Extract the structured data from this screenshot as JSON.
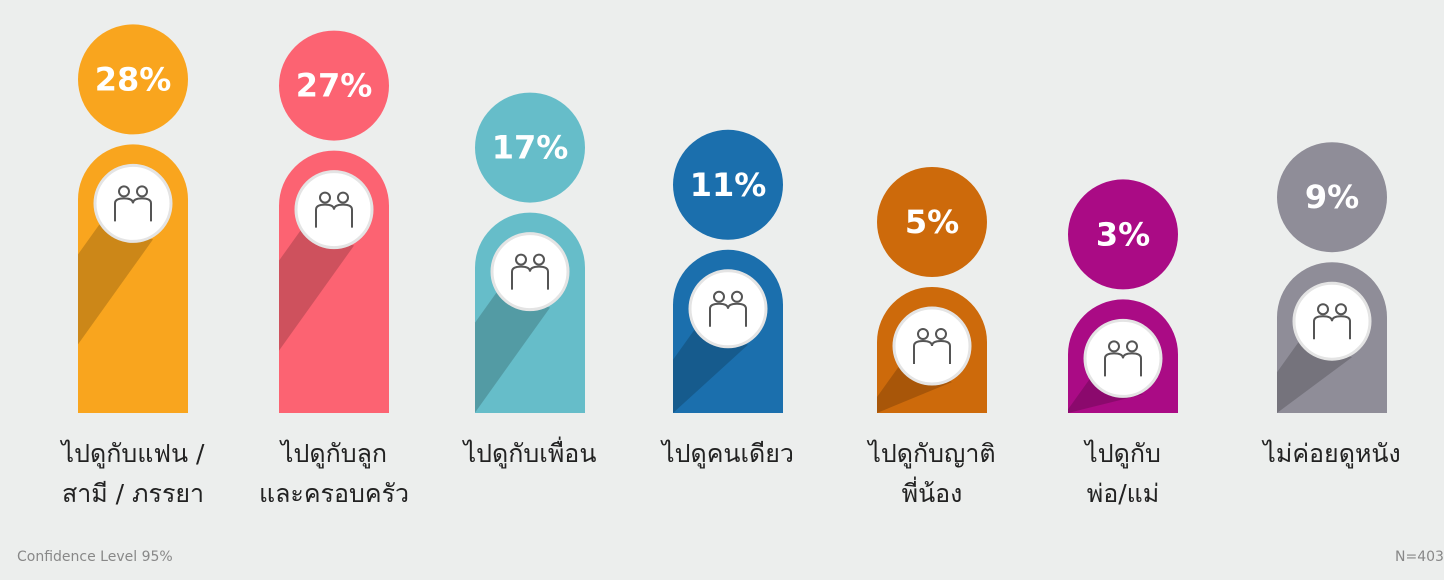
{
  "chart_data": {
    "type": "bar",
    "categories": [
      [
        "ไปดูกับแฟน /",
        "สามี / ภรรยา"
      ],
      [
        "ไปดูกับลูก",
        "และครอบครัว"
      ],
      [
        "ไปดูกับเพื่อน"
      ],
      [
        "ไปดูคนเดียว"
      ],
      [
        "ไปดูกับญาติ",
        "พี่น้อง"
      ],
      [
        "ไปดูกับ",
        "พ่อ/แม่"
      ],
      [
        "ไม่ค่อยดูหนัง"
      ]
    ],
    "values": [
      28,
      27,
      17,
      11,
      5,
      3,
      9
    ],
    "value_labels": [
      "28%",
      "27%",
      "17%",
      "11%",
      "5%",
      "3%",
      "9%"
    ],
    "colors": [
      "#f9a51e",
      "#fc6372",
      "#66bdc9",
      "#1b6fad",
      "#cd6a0b",
      "#aa0b85",
      "#8f8d98"
    ],
    "footnote_left": "Confidence Level 95%",
    "footnote_right": "N=403"
  }
}
